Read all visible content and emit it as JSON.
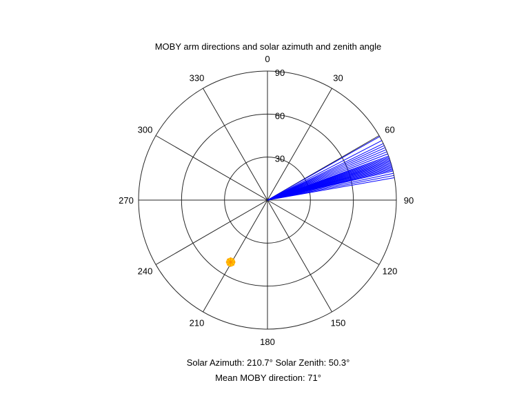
{
  "chart_data": {
    "type": "polar",
    "title": "MOBY arm directions and solar azimuth and zenith angle",
    "theta_direction": "clockwise",
    "theta_zero_location": "top",
    "theta_ticks": [
      0,
      30,
      60,
      90,
      120,
      150,
      180,
      210,
      240,
      270,
      300,
      330
    ],
    "theta_tick_labels": [
      "0",
      "30",
      "60",
      "90",
      "120",
      "150",
      "180",
      "210",
      "240",
      "270",
      "300",
      "330"
    ],
    "r_lim": [
      0,
      90
    ],
    "r_ticks": [
      30,
      60,
      90
    ],
    "r_tick_labels": [
      "30",
      "60",
      "90"
    ],
    "r_tick_label_angle": 0,
    "grid": true,
    "series": [
      {
        "type": "radial_lines",
        "color": "#0000ff",
        "r": 90,
        "theta_deg": [
          60.5,
          62.5,
          64.0,
          65.0,
          66.0,
          67.0,
          68.0,
          69.0,
          70.0,
          70.5,
          71.0,
          71.5,
          72.0,
          72.5,
          73.0,
          73.5,
          74.0,
          74.5,
          75.0,
          75.5,
          76.0,
          76.5,
          77.0,
          78.0,
          79.0,
          80.0
        ]
      },
      {
        "type": "point",
        "color": "#ffcc00",
        "theta_deg": 210.7,
        "r": 50.3
      }
    ],
    "caption_line1": "Solar Azimuth: 210.7°   Solar Zenith: 50.3°",
    "caption_line2": "Mean MOBY direction: 71°"
  }
}
